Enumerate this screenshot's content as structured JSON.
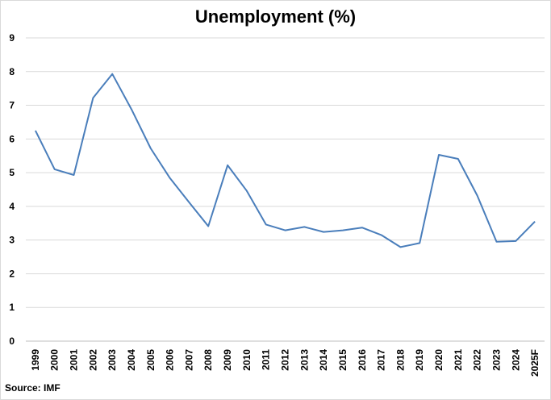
{
  "chart_data": {
    "type": "line",
    "title": "Unemployment (%)",
    "source": "Source: IMF",
    "xlabel": "",
    "ylabel": "",
    "ylim": [
      0,
      9
    ],
    "yticks": [
      "0",
      "1",
      "2",
      "3",
      "4",
      "5",
      "6",
      "7",
      "8",
      "9"
    ],
    "grid": true,
    "legend": "none",
    "line_color": "#4a7ebb",
    "categories": [
      "1999",
      "2000",
      "2001",
      "2002",
      "2003",
      "2004",
      "2005",
      "2006",
      "2007",
      "2008",
      "2009",
      "2010",
      "2011",
      "2012",
      "2013",
      "2014",
      "2015",
      "2016",
      "2017",
      "2018",
      "2019",
      "2020",
      "2021",
      "2022",
      "2023",
      "2024",
      "2025F"
    ],
    "series": [
      {
        "values": [
          6.25,
          5.1,
          4.93,
          7.22,
          7.93,
          6.88,
          5.72,
          4.84,
          4.12,
          3.41,
          5.22,
          4.46,
          3.46,
          3.29,
          3.39,
          3.24,
          3.29,
          3.37,
          3.15,
          2.79,
          2.91,
          5.53,
          5.41,
          4.32,
          2.95,
          2.97,
          3.55
        ]
      }
    ]
  }
}
